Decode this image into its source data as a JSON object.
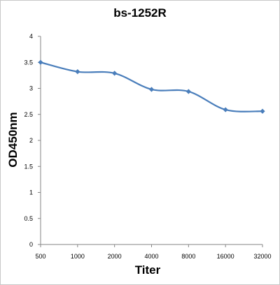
{
  "chart_data": {
    "type": "line",
    "title": "bs-1252R",
    "xlabel": "Titer",
    "ylabel": "OD450nm",
    "categories": [
      "500",
      "1000",
      "2000",
      "4000",
      "8000",
      "16000",
      "32000"
    ],
    "series": [
      {
        "values": [
          3.5,
          3.32,
          3.29,
          2.98,
          2.94,
          2.59,
          2.56
        ]
      }
    ],
    "ylim": [
      0,
      4
    ],
    "yticks": [
      "0",
      "0.5",
      "1",
      "1.5",
      "2",
      "2.5",
      "3",
      "3.5",
      "4"
    ],
    "grid": false,
    "legend": "none",
    "colors": {
      "line": "#4a7ebb",
      "axis": "#868686"
    }
  }
}
